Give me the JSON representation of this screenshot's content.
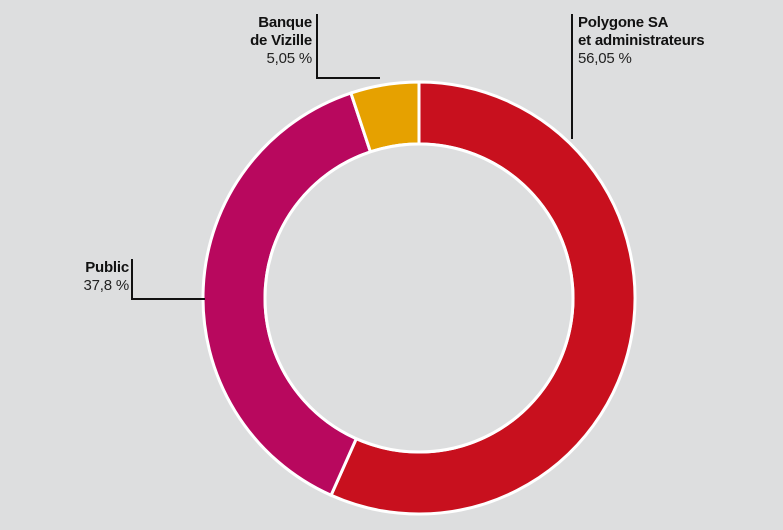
{
  "chart_data": {
    "type": "pie",
    "variant": "donut",
    "slices": [
      {
        "label_lines": [
          "Polygone SA",
          "et administrateurs"
        ],
        "value_label": "56,05 %",
        "value": 56.05,
        "color": "#c8101e"
      },
      {
        "label_lines": [
          "Public"
        ],
        "value_label": "37,8 %",
        "value": 37.8,
        "color": "#b8085e"
      },
      {
        "label_lines": [
          "Banque",
          "de Vizille"
        ],
        "value_label": "5,05 %",
        "value": 5.05,
        "color": "#e6a100"
      }
    ],
    "legend": "none",
    "title": ""
  }
}
